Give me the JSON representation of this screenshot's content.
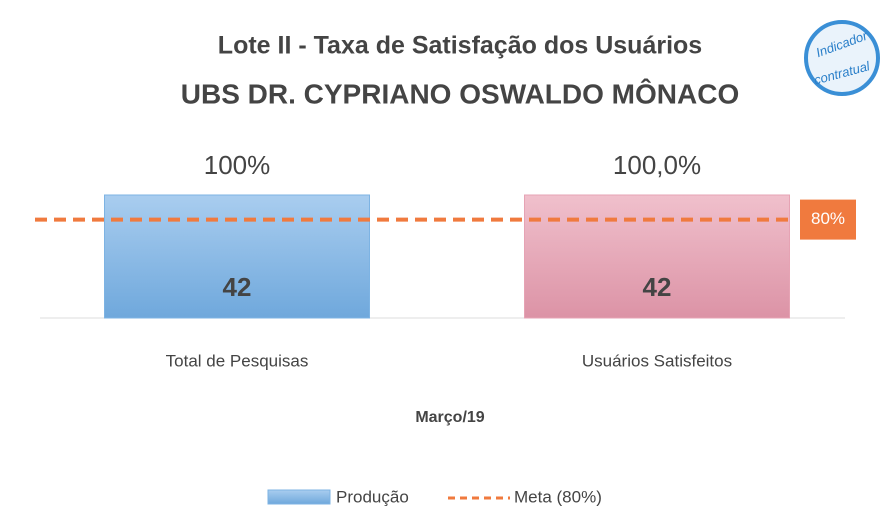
{
  "chart_data": {
    "type": "bar",
    "title": [
      "Lote II - Taxa de Satisfação dos Usuários",
      "UBS DR. CYPRIANO OSWALDO MÔNACO"
    ],
    "badge": [
      "Indicador",
      "contratual"
    ],
    "categories": [
      "Total de Pesquisas",
      "Usuários Satisfeitos"
    ],
    "series": [
      {
        "name": "Produção",
        "colors": [
          "#7db3e3",
          "#e6a3b4"
        ],
        "values": [
          100,
          100
        ],
        "value_labels": [
          "100%",
          "100,0%"
        ],
        "counts": [
          42,
          42
        ]
      }
    ],
    "meta": {
      "name": "Meta (80%)",
      "value": 80,
      "label": "80%",
      "color": "#f07a3e"
    },
    "x_label": "Março/19",
    "ylim": [
      0,
      100
    ]
  }
}
